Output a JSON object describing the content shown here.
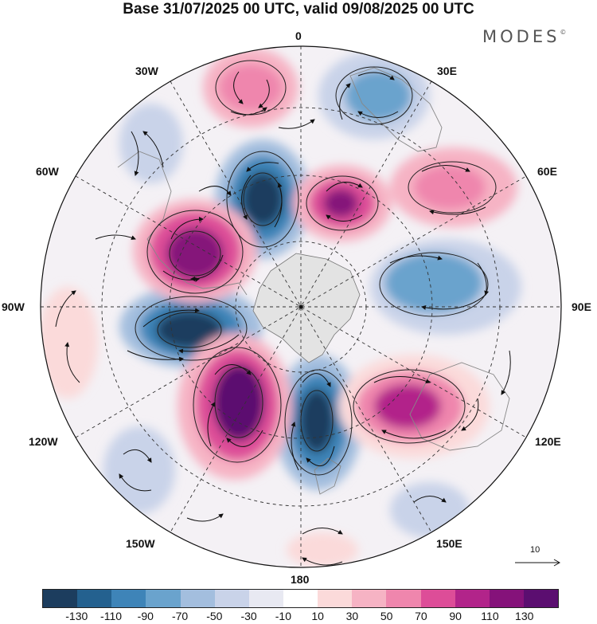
{
  "title": "Base 31/07/2025 00 UTC, valid 09/08/2025 00 UTC",
  "logo": "MODES",
  "logo_mark": "©",
  "longitude_labels": {
    "lon_0": "0",
    "lon_30e": "30E",
    "lon_60e": "60E",
    "lon_90e": "90E",
    "lon_120e": "120E",
    "lon_150e": "150E",
    "lon_180": "180",
    "lon_150w": "150W",
    "lon_120w": "120W",
    "lon_90w": "90W",
    "lon_60w": "60W",
    "lon_30w": "30W"
  },
  "reference_vector": "10",
  "colorbar": {
    "colors": [
      "#1c3d5e",
      "#24618f",
      "#3e84b8",
      "#6aa3cd",
      "#a3bede",
      "#c9d3e9",
      "#e8e9f2",
      "#ffffff",
      "#fbdada",
      "#f6b3c4",
      "#ef86ad",
      "#dd4d98",
      "#b2248a",
      "#85127a",
      "#5b0e70"
    ],
    "ticks": [
      "-130",
      "-110",
      "-90",
      "-70",
      "-50",
      "-30",
      "-10",
      "10",
      "30",
      "50",
      "70",
      "90",
      "110",
      "130"
    ]
  }
}
